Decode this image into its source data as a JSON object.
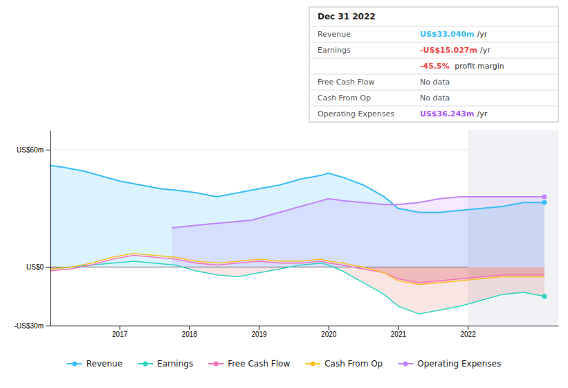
{
  "chart_data": {
    "type": "line",
    "xlim": [
      2016.0,
      2023.3
    ],
    "xticks": [
      2017,
      2018,
      2019,
      2020,
      2021,
      2022
    ],
    "ylim": [
      -30,
      70
    ],
    "yticks": [
      {
        "value": -30,
        "label": "-US$30m"
      },
      {
        "value": 0,
        "label": "US$0"
      },
      {
        "value": 60,
        "label": "US$60m"
      }
    ],
    "grid": true,
    "legend": "bottom",
    "highlight_start": 2022.0,
    "series": [
      {
        "name": "Revenue",
        "color": "#38bdf8",
        "type": "area",
        "marker": "end",
        "x": [
          2016.0,
          2016.2,
          2016.5,
          2016.8,
          2017.0,
          2017.3,
          2017.6,
          2017.9,
          2018.1,
          2018.4,
          2018.7,
          2019.0,
          2019.3,
          2019.6,
          2019.9,
          2020.0,
          2020.2,
          2020.5,
          2020.8,
          2021.0,
          2021.3,
          2021.6,
          2021.9,
          2022.2,
          2022.5,
          2022.8,
          2023.1
        ],
        "values": [
          52,
          51,
          49,
          46,
          44,
          42,
          40,
          39,
          38,
          36,
          38,
          40,
          42,
          45,
          47,
          48,
          46,
          42,
          36,
          30,
          28,
          28,
          29,
          30,
          31,
          33,
          33
        ]
      },
      {
        "name": "Earnings",
        "color": "#2dd4bf",
        "type": "line",
        "marker": "end",
        "x": [
          2016.0,
          2016.3,
          2016.6,
          2016.9,
          2017.2,
          2017.5,
          2017.8,
          2018.1,
          2018.4,
          2018.7,
          2019.0,
          2019.3,
          2019.6,
          2019.9,
          2020.0,
          2020.2,
          2020.5,
          2020.8,
          2021.0,
          2021.3,
          2021.6,
          2021.9,
          2022.2,
          2022.5,
          2022.8,
          2023.1
        ],
        "values": [
          -1,
          0,
          1,
          2,
          3,
          2,
          1,
          -2,
          -4,
          -5,
          -3,
          -1,
          1,
          2,
          1,
          -2,
          -8,
          -14,
          -20,
          -24,
          -22,
          -20,
          -17,
          -14,
          -13,
          -15
        ]
      },
      {
        "name": "Free Cash Flow",
        "color": "#f472b6",
        "type": "line",
        "x": [
          2016.0,
          2016.3,
          2016.6,
          2016.9,
          2017.2,
          2017.5,
          2017.8,
          2018.1,
          2018.4,
          2018.7,
          2019.0,
          2019.3,
          2019.6,
          2019.9,
          2020.0,
          2020.2,
          2020.5,
          2020.8,
          2021.0,
          2021.3,
          2021.6,
          2021.9,
          2022.2,
          2022.5,
          2022.8,
          2023.1
        ],
        "values": [
          -2,
          -1,
          1,
          4,
          6,
          5,
          4,
          2,
          1,
          2,
          3,
          2,
          2,
          3,
          2,
          1,
          -1,
          -3,
          -6,
          -8,
          -7,
          -6,
          -5,
          -4,
          -4,
          -4
        ]
      },
      {
        "name": "Cash From Op",
        "color": "#fbbf24",
        "type": "line",
        "x": [
          2016.0,
          2016.3,
          2016.6,
          2016.9,
          2017.2,
          2017.5,
          2017.8,
          2018.1,
          2018.4,
          2018.7,
          2019.0,
          2019.3,
          2019.6,
          2019.9,
          2020.0,
          2020.2,
          2020.5,
          2020.8,
          2021.0,
          2021.3,
          2021.6,
          2021.9,
          2022.2,
          2022.5,
          2022.8,
          2023.1
        ],
        "values": [
          -1,
          0,
          2,
          5,
          7,
          6,
          5,
          3,
          2,
          3,
          4,
          3,
          3,
          4,
          3,
          2,
          0,
          -3,
          -7,
          -9,
          -8,
          -7,
          -6,
          -5,
          -5,
          -5
        ]
      },
      {
        "name": "Operating Expenses",
        "color": "#c084fc",
        "type": "area",
        "marker": "end",
        "x": [
          2017.75,
          2018.0,
          2018.3,
          2018.6,
          2018.9,
          2019.2,
          2019.5,
          2019.8,
          2020.0,
          2020.2,
          2020.5,
          2020.8,
          2021.0,
          2021.3,
          2021.6,
          2021.9,
          2022.2,
          2022.5,
          2022.8,
          2023.1
        ],
        "values": [
          20,
          21,
          22,
          23,
          24,
          27,
          30,
          33,
          35,
          34,
          33,
          32,
          32,
          33,
          35,
          36,
          36,
          36,
          36,
          36
        ]
      }
    ],
    "info_box": {
      "title": "Dec 31 2022",
      "rows": [
        {
          "label": "Revenue",
          "value": "US$33.040m",
          "suffix": "/yr",
          "color": "#38bdf8"
        },
        {
          "label": "Earnings",
          "value": "-US$15.027m",
          "suffix": "/yr",
          "color": "#ef4444"
        },
        {
          "value": "-45.5%",
          "suffix": " profit margin",
          "color": "#ef4444"
        },
        {
          "label": "Free Cash Flow",
          "value": "No data",
          "color": "#4b5563"
        },
        {
          "label": "Cash From Op",
          "value": "No data",
          "color": "#4b5563"
        },
        {
          "label": "Operating Expenses",
          "value": "US$36.243m",
          "suffix": "/yr",
          "color": "#a855f7"
        }
      ]
    }
  }
}
